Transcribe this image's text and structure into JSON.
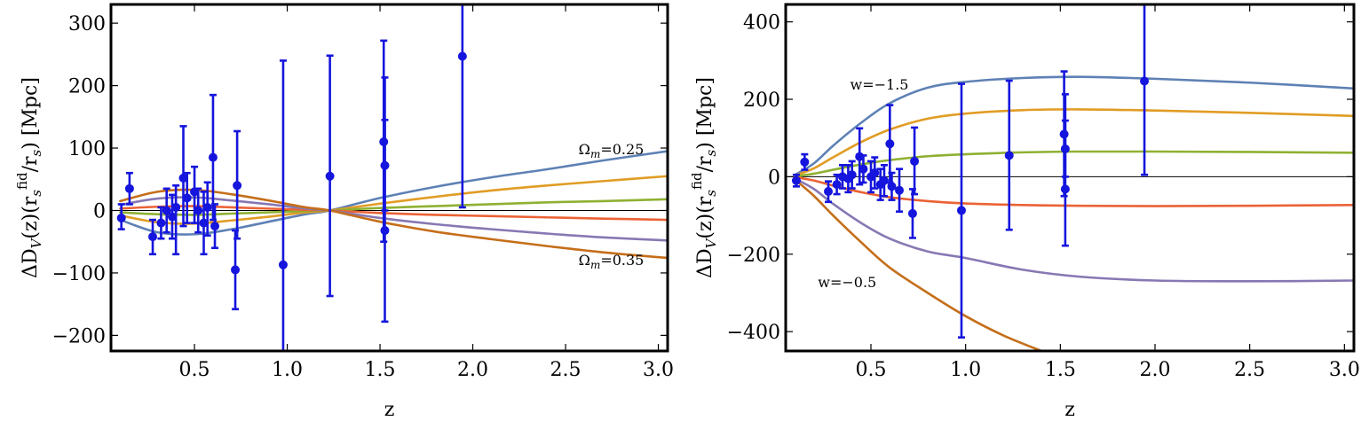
{
  "chart_data": [
    {
      "type": "line",
      "title": "",
      "xlabel": "z",
      "ylabel": {
        "main": "ΔD",
        "sub": "V",
        "mid1": "(z)(r",
        "sub2": "s",
        "sup": "fid",
        "mid2": "/r",
        "sub3": "s",
        "tail": ") [Mpc]"
      },
      "xlim": [
        0.05,
        3.05
      ],
      "ylim": [
        -225,
        330
      ],
      "xticks": [
        {
          "v": 0.5,
          "label": "0.5"
        },
        {
          "v": 1.0,
          "label": "1.0"
        },
        {
          "v": 1.5,
          "label": "1.5"
        },
        {
          "v": 2.0,
          "label": "2.0"
        },
        {
          "v": 2.5,
          "label": "2.5"
        },
        {
          "v": 3.0,
          "label": "3.0"
        }
      ],
      "yticks": [
        {
          "v": -200,
          "label": "−200"
        },
        {
          "v": -100,
          "label": "−100"
        },
        {
          "v": 0,
          "label": "0"
        },
        {
          "v": 100,
          "label": "100"
        },
        {
          "v": 200,
          "label": "200"
        },
        {
          "v": 300,
          "label": "300"
        }
      ],
      "zero_line": true,
      "grid": false,
      "series": [
        {
          "color": "#5e81b5",
          "x": [
            0.1,
            0.3,
            0.5,
            0.7,
            0.9,
            1.1,
            1.23,
            1.5,
            1.8,
            2.1,
            2.4,
            2.7,
            3.05
          ],
          "y": [
            -15,
            -35,
            -38,
            -30,
            -18,
            -6,
            0,
            20,
            38,
            53,
            66,
            80,
            95
          ]
        },
        {
          "color": "#e19c24",
          "x": [
            0.1,
            0.3,
            0.5,
            0.7,
            0.9,
            1.1,
            1.23,
            1.5,
            1.8,
            2.1,
            2.4,
            2.7,
            3.05
          ],
          "y": [
            -8,
            -19,
            -21,
            -16,
            -10,
            -3,
            0,
            11,
            22,
            32,
            40,
            47,
            55
          ]
        },
        {
          "color": "#8fb032",
          "x": [
            0.1,
            0.3,
            0.5,
            0.7,
            0.9,
            1.1,
            1.23,
            1.5,
            1.8,
            2.1,
            2.4,
            2.7,
            3.05
          ],
          "y": [
            -3,
            -6,
            -7,
            -5,
            -3,
            -1,
            0,
            4,
            7,
            10,
            13,
            15,
            18
          ]
        },
        {
          "color": "#eb6235",
          "x": [
            0.1,
            0.3,
            0.5,
            0.7,
            0.9,
            1.1,
            1.23,
            1.5,
            1.8,
            2.1,
            2.4,
            2.7,
            3.05
          ],
          "y": [
            3,
            6,
            7,
            5,
            3,
            1,
            0,
            -4,
            -7,
            -9,
            -11,
            -13,
            -15
          ]
        },
        {
          "color": "#8778b3",
          "x": [
            0.1,
            0.3,
            0.5,
            0.7,
            0.9,
            1.1,
            1.23,
            1.5,
            1.8,
            2.1,
            2.4,
            2.7,
            3.05
          ],
          "y": [
            9,
            19,
            21,
            16,
            10,
            3,
            0,
            -12,
            -22,
            -30,
            -37,
            -43,
            -48
          ]
        },
        {
          "color": "#c56e1a",
          "x": [
            0.1,
            0.3,
            0.5,
            0.7,
            0.9,
            1.1,
            1.23,
            1.5,
            1.8,
            2.1,
            2.4,
            2.7,
            3.05
          ],
          "y": [
            15,
            30,
            33,
            26,
            16,
            5,
            0,
            -18,
            -34,
            -46,
            -57,
            -67,
            -76
          ]
        }
      ],
      "points": [
        {
          "x": 0.106,
          "y": -12,
          "lo": -30,
          "hi": 10
        },
        {
          "x": 0.15,
          "y": 35,
          "lo": 10,
          "hi": 60
        },
        {
          "x": 0.275,
          "y": -42,
          "lo": -70,
          "hi": -15
        },
        {
          "x": 0.32,
          "y": -20,
          "lo": -45,
          "hi": 5
        },
        {
          "x": 0.35,
          "y": 0,
          "lo": -35,
          "hi": 35
        },
        {
          "x": 0.38,
          "y": -10,
          "lo": -45,
          "hi": 25
        },
        {
          "x": 0.4,
          "y": 5,
          "lo": -70,
          "hi": 40
        },
        {
          "x": 0.44,
          "y": 52,
          "lo": -25,
          "hi": 135
        },
        {
          "x": 0.46,
          "y": 20,
          "lo": -20,
          "hi": 60
        },
        {
          "x": 0.5,
          "y": 30,
          "lo": -20,
          "hi": 70
        },
        {
          "x": 0.52,
          "y": 0,
          "lo": -35,
          "hi": 35
        },
        {
          "x": 0.55,
          "y": -20,
          "lo": -70,
          "hi": 30
        },
        {
          "x": 0.57,
          "y": 5,
          "lo": -40,
          "hi": 45
        },
        {
          "x": 0.6,
          "y": 85,
          "lo": -15,
          "hi": 185
        },
        {
          "x": 0.61,
          "y": -25,
          "lo": -60,
          "hi": 10
        },
        {
          "x": 0.73,
          "y": 40,
          "lo": -45,
          "hi": 127
        },
        {
          "x": 0.72,
          "y": -95,
          "lo": -158,
          "hi": -32
        },
        {
          "x": 0.978,
          "y": -87,
          "lo": -225,
          "hi": 240
        },
        {
          "x": 1.23,
          "y": 55,
          "lo": -137,
          "hi": 248
        },
        {
          "x": 1.52,
          "y": 110,
          "lo": -50,
          "hi": 272
        },
        {
          "x": 1.526,
          "y": -32,
          "lo": -178,
          "hi": 213
        },
        {
          "x": 1.526,
          "y": 72,
          "lo": 0,
          "hi": 145
        },
        {
          "x": 1.944,
          "y": 247,
          "lo": 5,
          "hi": 330
        }
      ],
      "annotations": [
        {
          "base": "Ω",
          "sub": "m",
          "rest": "=0.25",
          "x": 2.57,
          "y": 90
        },
        {
          "base": "Ω",
          "sub": "m",
          "rest": "=0.35",
          "x": 2.57,
          "y": -87
        }
      ]
    },
    {
      "type": "line",
      "title": "",
      "xlabel": "z",
      "ylabel": {
        "main": "ΔD",
        "sub": "V",
        "mid1": "(z)(r",
        "sub2": "s",
        "sup": "fid",
        "mid2": "/r",
        "sub3": "s",
        "tail": ") [Mpc]"
      },
      "xlim": [
        0.05,
        3.05
      ],
      "ylim": [
        -450,
        445
      ],
      "xticks": [
        {
          "v": 0.5,
          "label": "0.5"
        },
        {
          "v": 1.0,
          "label": "1.0"
        },
        {
          "v": 1.5,
          "label": "1.5"
        },
        {
          "v": 2.0,
          "label": "2.0"
        },
        {
          "v": 2.5,
          "label": "2.5"
        },
        {
          "v": 3.0,
          "label": "3.0"
        }
      ],
      "yticks": [
        {
          "v": -400,
          "label": "−400"
        },
        {
          "v": -200,
          "label": "−200"
        },
        {
          "v": 0,
          "label": "0"
        },
        {
          "v": 200,
          "label": "200"
        },
        {
          "v": 400,
          "label": "400"
        }
      ],
      "zero_line": true,
      "grid": false,
      "series": [
        {
          "color": "#5e81b5",
          "x": [
            0.1,
            0.2,
            0.3,
            0.45,
            0.6,
            0.8,
            1.0,
            1.3,
            1.6,
            2.0,
            2.5,
            3.05
          ],
          "y": [
            5,
            35,
            80,
            140,
            190,
            230,
            245,
            255,
            258,
            253,
            243,
            228
          ]
        },
        {
          "color": "#e19c24",
          "x": [
            0.1,
            0.2,
            0.3,
            0.45,
            0.6,
            0.8,
            1.0,
            1.3,
            1.6,
            2.0,
            2.5,
            3.05
          ],
          "y": [
            3,
            22,
            50,
            90,
            122,
            150,
            163,
            172,
            174,
            171,
            165,
            157
          ]
        },
        {
          "color": "#8fb032",
          "x": [
            0.1,
            0.2,
            0.3,
            0.45,
            0.6,
            0.8,
            1.0,
            1.3,
            1.6,
            2.0,
            2.5,
            3.05
          ],
          "y": [
            1,
            8,
            18,
            32,
            43,
            53,
            58,
            63,
            65,
            65,
            64,
            62
          ]
        },
        {
          "color": "#eb6235",
          "x": [
            0.1,
            0.2,
            0.3,
            0.45,
            0.6,
            0.8,
            1.0,
            1.3,
            1.6,
            2.0,
            2.5,
            3.05
          ],
          "y": [
            -1,
            -10,
            -23,
            -40,
            -53,
            -63,
            -69,
            -73,
            -75,
            -76,
            -75,
            -73
          ]
        },
        {
          "color": "#8778b3",
          "x": [
            0.1,
            0.2,
            0.3,
            0.45,
            0.6,
            0.8,
            1.0,
            1.3,
            1.6,
            2.0,
            2.5,
            3.05
          ],
          "y": [
            -5,
            -32,
            -70,
            -120,
            -160,
            -193,
            -210,
            -240,
            -258,
            -268,
            -270,
            -268
          ]
        },
        {
          "color": "#c56e1a",
          "x": [
            0.1,
            0.2,
            0.3,
            0.45,
            0.6,
            0.8,
            1.0,
            1.2,
            1.4
          ],
          "y": [
            -8,
            -50,
            -100,
            -170,
            -235,
            -300,
            -360,
            -410,
            -450
          ]
        }
      ],
      "points": [
        {
          "x": 0.106,
          "y": -10,
          "lo": -25,
          "hi": 5
        },
        {
          "x": 0.15,
          "y": 38,
          "lo": 18,
          "hi": 58
        },
        {
          "x": 0.275,
          "y": -38,
          "lo": -65,
          "hi": -12
        },
        {
          "x": 0.32,
          "y": -20,
          "lo": -45,
          "hi": 5
        },
        {
          "x": 0.35,
          "y": 0,
          "lo": -30,
          "hi": 30
        },
        {
          "x": 0.38,
          "y": -5,
          "lo": -40,
          "hi": 30
        },
        {
          "x": 0.4,
          "y": 5,
          "lo": -30,
          "hi": 40
        },
        {
          "x": 0.44,
          "y": 52,
          "lo": -20,
          "hi": 125
        },
        {
          "x": 0.46,
          "y": 20,
          "lo": -15,
          "hi": 55
        },
        {
          "x": 0.5,
          "y": 0,
          "lo": -40,
          "hi": 40
        },
        {
          "x": 0.52,
          "y": 10,
          "lo": -30,
          "hi": 50
        },
        {
          "x": 0.55,
          "y": -20,
          "lo": -60,
          "hi": 20
        },
        {
          "x": 0.57,
          "y": -10,
          "lo": -50,
          "hi": 30
        },
        {
          "x": 0.6,
          "y": 85,
          "lo": -15,
          "hi": 185
        },
        {
          "x": 0.61,
          "y": -25,
          "lo": -60,
          "hi": 10
        },
        {
          "x": 0.65,
          "y": -35,
          "lo": -90,
          "hi": 20
        },
        {
          "x": 0.73,
          "y": 40,
          "lo": -45,
          "hi": 127
        },
        {
          "x": 0.72,
          "y": -95,
          "lo": -158,
          "hi": -32
        },
        {
          "x": 0.978,
          "y": -87,
          "lo": -415,
          "hi": 240
        },
        {
          "x": 1.23,
          "y": 55,
          "lo": -137,
          "hi": 248
        },
        {
          "x": 1.52,
          "y": 110,
          "lo": -50,
          "hi": 272
        },
        {
          "x": 1.526,
          "y": -32,
          "lo": -178,
          "hi": 213
        },
        {
          "x": 1.526,
          "y": 72,
          "lo": 0,
          "hi": 145
        },
        {
          "x": 1.944,
          "y": 247,
          "lo": 5,
          "hi": 445
        }
      ],
      "annotations": [
        {
          "base": "w=−1.5",
          "sub": "",
          "rest": "",
          "x": 0.39,
          "y": 225
        },
        {
          "base": "w=−0.5",
          "sub": "",
          "rest": "",
          "x": 0.22,
          "y": -285
        }
      ]
    }
  ]
}
